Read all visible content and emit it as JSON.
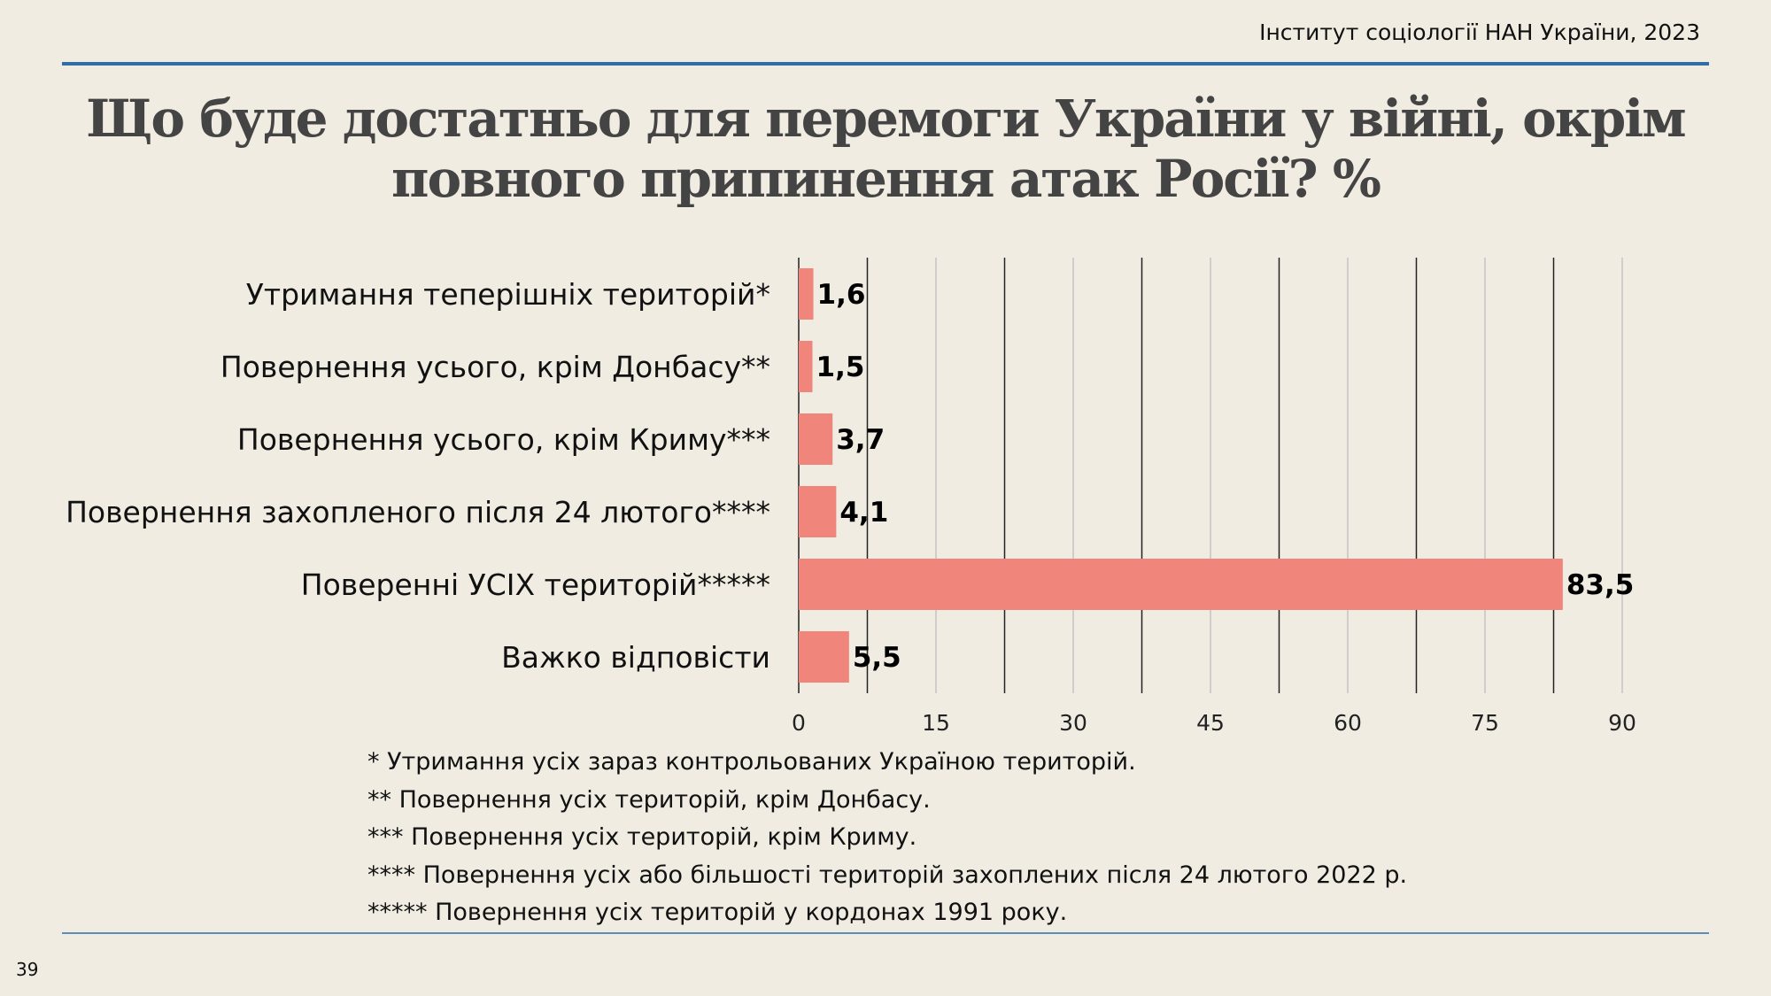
{
  "header": {
    "source": "Інститут соціології НАН України, 2023",
    "page_number": "39"
  },
  "title_lines": [
    "Що буде достатньо для перемоги України у війні, окрім",
    "повного припинення атак Росії? %"
  ],
  "footnotes": [
    "* Утримання усіх зараз контрольованих Україною територій.",
    "** Повернення усіх територій, крім Донбасу.",
    "*** Повернення усіх територій, крім Криму.",
    "**** Повернення усіх або більшості територій захоплених після 24 лютого 2022 р.",
    "***** Повернення усіх територій у кордонах 1991 року."
  ],
  "colors": {
    "bar": "#f0857c",
    "accent_rule": "#2e6ea5",
    "background": "#f0ece2"
  },
  "chart_data": {
    "type": "bar",
    "orientation": "horizontal",
    "categories": [
      "Утримання теперішніх територій*",
      "Повернення усього, крім Донбасу**",
      "Повернення усього, крім Криму***",
      "Повернення захопленого після 24 лютого****",
      "Поверенні УСІХ територій*****",
      "Важко відповісти"
    ],
    "values": [
      1.6,
      1.5,
      3.7,
      4.1,
      83.5,
      5.5
    ],
    "value_labels": [
      "1,6",
      "1,5",
      "3,7",
      "4,1",
      "83,5",
      "5,5"
    ],
    "xlim": [
      0,
      90
    ],
    "x_ticks": [
      "0",
      "15",
      "30",
      "45",
      "60",
      "75",
      "90"
    ],
    "grid": true
  }
}
